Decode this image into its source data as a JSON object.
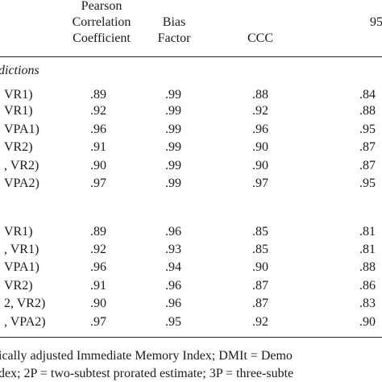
{
  "header": {
    "col_pearson": [
      "Pearson",
      "Correlation",
      "Coefficient"
    ],
    "col_bias": [
      "Bias",
      "Factor"
    ],
    "col_ccc": "CCC",
    "col_95": "95"
  },
  "sections": [
    {
      "label": "dictions",
      "rows": [
        {
          "label": "VR1)",
          "pearson": ".89",
          "bias": ".99",
          "ccc": ".88",
          "c95": ".84"
        },
        {
          "label": "VR1)",
          "pearson": ".92",
          "bias": ".99",
          "ccc": ".92",
          "c95": ".88"
        },
        {
          "label": "VPA1)",
          "pearson": ".96",
          "bias": ".99",
          "ccc": ".96",
          "c95": ".95"
        },
        {
          "label": "VR2)",
          "pearson": ".91",
          "bias": ".99",
          "ccc": ".90",
          "c95": ".87"
        },
        {
          "label": ", VR2)",
          "pearson": ".90",
          "bias": ".99",
          "ccc": ".90",
          "c95": ".87"
        },
        {
          "label": "VPA2)",
          "pearson": ".97",
          "bias": ".99",
          "ccc": ".97",
          "c95": ".95"
        }
      ]
    },
    {
      "label": "",
      "rows": [
        {
          "label": "VR1)",
          "pearson": ".89",
          "bias": ".96",
          "ccc": ".85",
          "c95": ".81"
        },
        {
          "label": ", VR1)",
          "pearson": ".92",
          "bias": ".93",
          "ccc": ".85",
          "c95": ".81"
        },
        {
          "label": "VPA1)",
          "pearson": ".96",
          "bias": ".94",
          "ccc": ".90",
          "c95": ".88"
        },
        {
          "label": "VR2)",
          "pearson": ".91",
          "bias": ".96",
          "ccc": ".87",
          "c95": ".86"
        },
        {
          "label": "2, VR2)",
          "pearson": ".90",
          "bias": ".96",
          "ccc": ".87",
          "c95": ".83"
        },
        {
          "label": ", VPA2)",
          "pearson": ".97",
          "bias": ".95",
          "ccc": ".92",
          "c95": ".90"
        }
      ]
    }
  ],
  "notes": {
    "line1": "ically adjusted Immediate Memory Index; DMIt = Demo",
    "line2": "dex; 2P = two-subtest prorated estimate; 3P = three-subte"
  }
}
